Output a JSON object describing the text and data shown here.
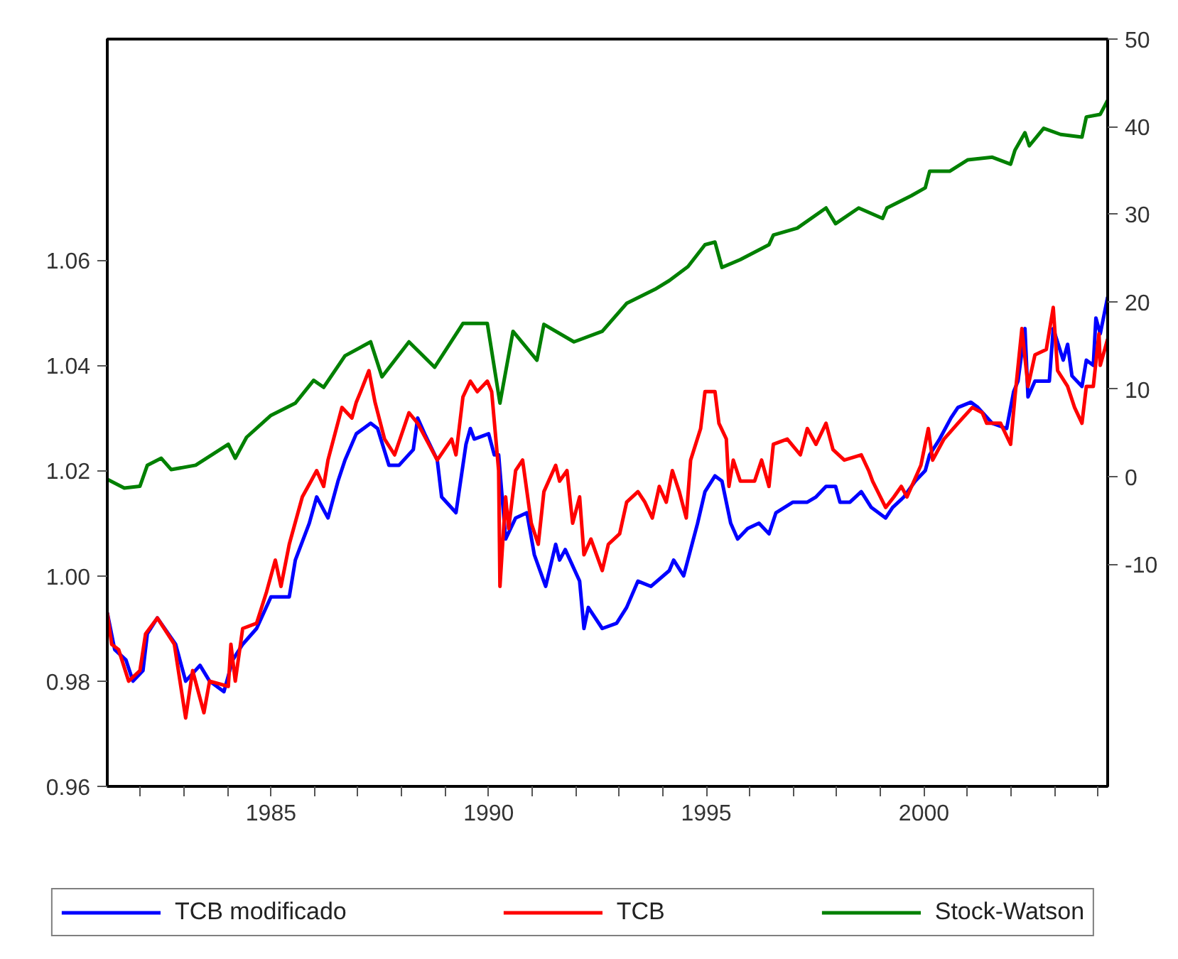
{
  "chart_data": {
    "type": "line",
    "xlim": [
      1981.24,
      2004.22
    ],
    "xticks": [
      {
        "value": 1982,
        "label": null
      },
      {
        "value": 1983,
        "label": null
      },
      {
        "value": 1984,
        "label": null
      },
      1985,
      {
        "value": 1986,
        "label": null
      },
      {
        "value": 1987,
        "label": null
      },
      {
        "value": 1988,
        "label": null
      },
      {
        "value": 1989,
        "label": null
      },
      1990,
      {
        "value": 1991,
        "label": null
      },
      {
        "value": 1992,
        "label": null
      },
      {
        "value": 1993,
        "label": null
      },
      {
        "value": 1994,
        "label": null
      },
      1995,
      {
        "value": 1996,
        "label": null
      },
      {
        "value": 1997,
        "label": null
      },
      {
        "value": 1998,
        "label": null
      },
      {
        "value": 1999,
        "label": null
      },
      2000,
      {
        "value": 2001,
        "label": null
      },
      {
        "value": 2002,
        "label": null
      },
      {
        "value": 2003,
        "label": null
      },
      {
        "value": 2004,
        "label": null
      }
    ],
    "ylim": [
      0.96,
      1.102
    ],
    "yticks": [
      0.96,
      0.98,
      {
        "value": 1.0,
        "label": "1.00"
      },
      1.02,
      1.04,
      1.06
    ],
    "y2lim": [
      -35.4,
      50
    ],
    "y2ticks": [
      -10,
      0,
      10,
      20,
      30,
      40,
      50
    ],
    "grid": false,
    "legend": "bottom",
    "marker": "none",
    "line_style": "solid",
    "series": [
      {
        "name": "TCB modificado",
        "color": "#0000ff",
        "x": [
          1981.24,
          1981.41,
          1981.67,
          1981.83,
          1982.06,
          1982.16,
          1982.39,
          1982.81,
          1983.04,
          1983.37,
          1983.59,
          1983.92,
          1984.12,
          1984.35,
          1984.67,
          1985.0,
          1985.42,
          1985.56,
          1985.88,
          1986.05,
          1986.31,
          1986.54,
          1986.7,
          1986.96,
          1987.29,
          1987.45,
          1987.71,
          1987.94,
          1988.27,
          1988.37,
          1988.53,
          1988.82,
          1988.92,
          1989.25,
          1989.48,
          1989.58,
          1989.67,
          1990.0,
          1990.13,
          1990.23,
          1990.39,
          1990.62,
          1990.88,
          1991.05,
          1991.31,
          1991.54,
          1991.63,
          1991.76,
          1992.09,
          1992.19,
          1992.29,
          1992.61,
          1992.94,
          1993.17,
          1993.43,
          1993.73,
          1994.15,
          1994.25,
          1994.48,
          1994.64,
          1994.8,
          1994.97,
          1995.2,
          1995.36,
          1995.56,
          1995.72,
          1995.95,
          1996.21,
          1996.44,
          1996.6,
          1996.99,
          1997.32,
          1997.52,
          1997.75,
          1997.97,
          1998.07,
          1998.3,
          1998.56,
          1998.79,
          1999.12,
          1999.28,
          1999.54,
          1999.8,
          2000.03,
          2000.13,
          2000.36,
          2000.62,
          2000.78,
          2001.08,
          2001.24,
          2001.57,
          2001.9,
          2002.06,
          2002.16,
          2002.32,
          2002.39,
          2002.55,
          2002.88,
          2002.97,
          2003.2,
          2003.3,
          2003.4,
          2003.63,
          2003.73,
          2003.89,
          2003.95,
          2004.05,
          2004.22
        ],
        "values": [
          0.993,
          0.986,
          0.984,
          0.98,
          0.982,
          0.989,
          0.992,
          0.987,
          0.98,
          0.983,
          0.98,
          0.978,
          0.984,
          0.987,
          0.99,
          0.996,
          0.996,
          1.003,
          1.01,
          1.015,
          1.011,
          1.018,
          1.022,
          1.027,
          1.029,
          1.028,
          1.021,
          1.021,
          1.024,
          1.03,
          1.027,
          1.022,
          1.015,
          1.012,
          1.025,
          1.028,
          1.026,
          1.027,
          1.023,
          1.023,
          1.007,
          1.011,
          1.012,
          1.004,
          0.998,
          1.006,
          1.003,
          1.005,
          0.999,
          0.99,
          0.994,
          0.99,
          0.991,
          0.994,
          0.999,
          0.998,
          1.001,
          1.003,
          1.0,
          1.005,
          1.01,
          1.016,
          1.019,
          1.018,
          1.01,
          1.007,
          1.009,
          1.01,
          1.008,
          1.012,
          1.014,
          1.014,
          1.015,
          1.017,
          1.017,
          1.014,
          1.014,
          1.016,
          1.013,
          1.011,
          1.013,
          1.015,
          1.018,
          1.02,
          1.023,
          1.026,
          1.03,
          1.032,
          1.033,
          1.032,
          1.029,
          1.028,
          1.035,
          1.037,
          1.047,
          1.034,
          1.037,
          1.037,
          1.047,
          1.041,
          1.044,
          1.038,
          1.036,
          1.041,
          1.04,
          1.049,
          1.046,
          1.053
        ]
      },
      {
        "name": "TCB",
        "color": "#ff0000",
        "x": [
          1981.24,
          1981.34,
          1981.5,
          1981.73,
          1981.99,
          1982.12,
          1982.39,
          1982.78,
          1983.04,
          1983.2,
          1983.46,
          1983.59,
          1984.02,
          1984.08,
          1984.18,
          1984.35,
          1984.67,
          1984.9,
          1985.1,
          1985.23,
          1985.42,
          1985.72,
          1985.92,
          1986.05,
          1986.21,
          1986.31,
          1986.63,
          1986.86,
          1986.96,
          1987.06,
          1987.25,
          1987.39,
          1987.61,
          1987.84,
          1988.17,
          1988.37,
          1988.82,
          1989.15,
          1989.25,
          1989.41,
          1989.58,
          1989.74,
          1989.97,
          1990.07,
          1990.23,
          1990.26,
          1990.39,
          1990.46,
          1990.62,
          1990.78,
          1990.98,
          1991.14,
          1991.27,
          1991.54,
          1991.63,
          1991.8,
          1991.93,
          1992.09,
          1992.19,
          1992.35,
          1992.61,
          1992.75,
          1993.01,
          1993.17,
          1993.43,
          1993.59,
          1993.76,
          1993.92,
          1994.08,
          1994.22,
          1994.38,
          1994.54,
          1994.64,
          1994.87,
          1994.97,
          1995.2,
          1995.29,
          1995.46,
          1995.52,
          1995.62,
          1995.78,
          1996.11,
          1996.27,
          1996.44,
          1996.54,
          1996.86,
          1997.16,
          1997.32,
          1997.52,
          1997.75,
          1997.91,
          1998.17,
          1998.56,
          1998.73,
          1998.82,
          1999.12,
          1999.31,
          1999.48,
          1999.61,
          1999.77,
          1999.93,
          2000.1,
          2000.2,
          2000.46,
          2000.78,
          2001.11,
          2001.34,
          2001.44,
          2001.76,
          2001.99,
          2002.09,
          2002.25,
          2002.39,
          2002.55,
          2002.81,
          2002.97,
          2003.07,
          2003.3,
          2003.46,
          2003.63,
          2003.73,
          2003.89,
          2004.02,
          2004.05,
          2004.22
        ],
        "values": [
          0.993,
          0.987,
          0.986,
          0.98,
          0.982,
          0.989,
          0.992,
          0.987,
          0.973,
          0.982,
          0.974,
          0.98,
          0.979,
          0.987,
          0.98,
          0.99,
          0.991,
          0.997,
          1.003,
          0.998,
          1.006,
          1.015,
          1.018,
          1.02,
          1.017,
          1.022,
          1.032,
          1.03,
          1.033,
          1.035,
          1.039,
          1.033,
          1.026,
          1.023,
          1.031,
          1.029,
          1.022,
          1.026,
          1.023,
          1.034,
          1.037,
          1.035,
          1.037,
          1.035,
          1.02,
          0.998,
          1.015,
          1.009,
          1.02,
          1.022,
          1.01,
          1.006,
          1.016,
          1.021,
          1.018,
          1.02,
          1.01,
          1.015,
          1.004,
          1.007,
          1.001,
          1.006,
          1.008,
          1.014,
          1.016,
          1.014,
          1.011,
          1.017,
          1.014,
          1.02,
          1.016,
          1.011,
          1.022,
          1.028,
          1.035,
          1.035,
          1.029,
          1.026,
          1.017,
          1.022,
          1.018,
          1.018,
          1.022,
          1.017,
          1.025,
          1.026,
          1.023,
          1.028,
          1.025,
          1.029,
          1.024,
          1.022,
          1.023,
          1.02,
          1.018,
          1.013,
          1.015,
          1.017,
          1.015,
          1.018,
          1.021,
          1.028,
          1.022,
          1.026,
          1.029,
          1.032,
          1.031,
          1.029,
          1.029,
          1.025,
          1.034,
          1.047,
          1.036,
          1.042,
          1.043,
          1.051,
          1.039,
          1.036,
          1.032,
          1.029,
          1.036,
          1.036,
          1.046,
          1.04,
          1.045
        ]
      },
      {
        "name": "Stock-Watson",
        "color": "#008000",
        "axis": "y2",
        "x": [
          1981.24,
          1981.63,
          1981.99,
          1982.16,
          1982.48,
          1982.71,
          1983.27,
          1984.02,
          1984.18,
          1984.44,
          1985.0,
          1985.56,
          1985.98,
          1986.21,
          1986.7,
          1987.29,
          1987.55,
          1988.17,
          1988.76,
          1989.41,
          1989.97,
          1990.26,
          1990.56,
          1991.11,
          1991.27,
          1991.96,
          1992.61,
          1993.17,
          1993.82,
          1994.15,
          1994.58,
          1994.97,
          1995.2,
          1995.36,
          1995.78,
          1996.44,
          1996.54,
          1997.09,
          1997.75,
          1997.97,
          1998.5,
          1999.05,
          1999.15,
          1999.71,
          2000.03,
          2000.13,
          2000.59,
          2001.01,
          2001.57,
          2001.99,
          2002.09,
          2002.32,
          2002.42,
          2002.75,
          2003.14,
          2003.63,
          2003.73,
          2004.05,
          2004.22
        ],
        "values": [
          -0.3,
          -1.3,
          -1.1,
          1.3,
          2.1,
          0.8,
          1.3,
          3.7,
          2.1,
          4.5,
          7.0,
          8.4,
          11.0,
          10.2,
          13.8,
          15.4,
          11.4,
          15.4,
          12.5,
          17.5,
          17.5,
          8.4,
          16.6,
          13.3,
          17.4,
          15.4,
          16.6,
          19.8,
          21.4,
          22.4,
          24.0,
          26.5,
          26.8,
          23.9,
          24.8,
          26.5,
          27.6,
          28.4,
          30.7,
          28.9,
          30.7,
          29.5,
          30.7,
          32.1,
          33.0,
          34.9,
          34.9,
          36.2,
          36.5,
          35.7,
          37.3,
          39.3,
          37.8,
          39.8,
          39.1,
          38.8,
          41.1,
          41.4,
          43.0
        ]
      }
    ]
  }
}
